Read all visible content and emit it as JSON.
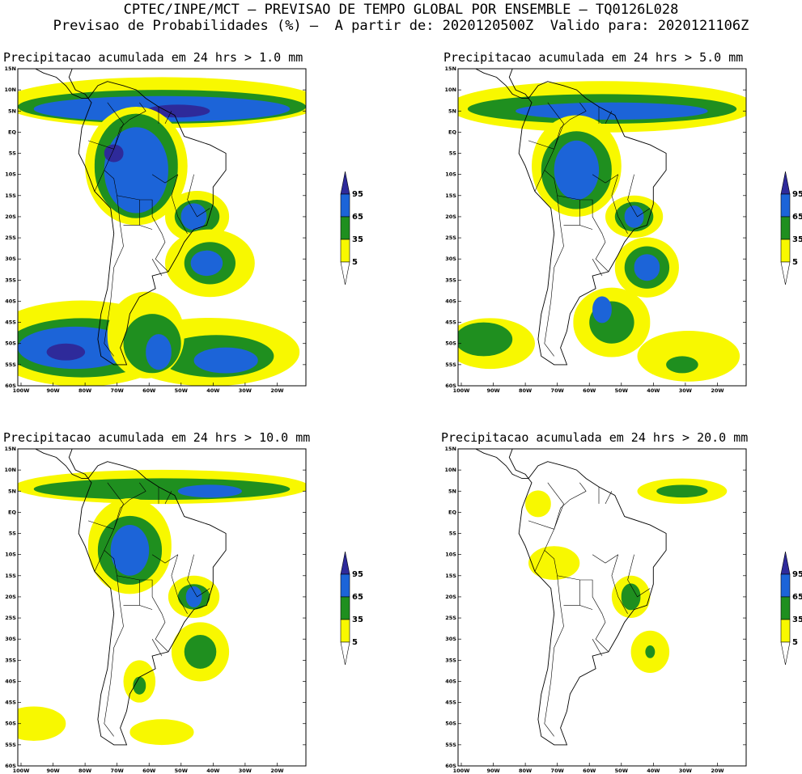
{
  "header": {
    "line1": "CPTEC/INPE/MCT – PREVISAO DE TEMPO GLOBAL POR ENSEMBLE – TQ0126L028",
    "line2": "Previsao de Probabilidades (%) –  A partir de: 2020120500Z  Valido para: 2020121106Z"
  },
  "axes": {
    "lat_labels": [
      "15N",
      "10N",
      "5N",
      "EQ",
      "5S",
      "10S",
      "15S",
      "20S",
      "25S",
      "30S",
      "35S",
      "40S",
      "45S",
      "50S",
      "55S",
      "60S"
    ],
    "lon_labels": [
      "100W",
      "90W",
      "80W",
      "70W",
      "60W",
      "50W",
      "40W",
      "30W",
      "20W"
    ]
  },
  "legend": {
    "labels": [
      "95",
      "65",
      "35",
      "5"
    ],
    "colors": {
      "c95": "#2e2a9a",
      "c65": "#1c64d8",
      "c35": "#1f8f1f",
      "c5": "#f8f800"
    }
  },
  "panels": [
    {
      "title": "Precipitacao acumulada em 24 hrs > 1.0 mm"
    },
    {
      "title": "Precipitacao acumulada em 24 hrs > 5.0 mm"
    },
    {
      "title": "Precipitacao acumulada em 24 hrs > 10.0 mm"
    },
    {
      "title": "Precipitacao acumulada em 24 hrs > 20.0 mm"
    }
  ]
}
